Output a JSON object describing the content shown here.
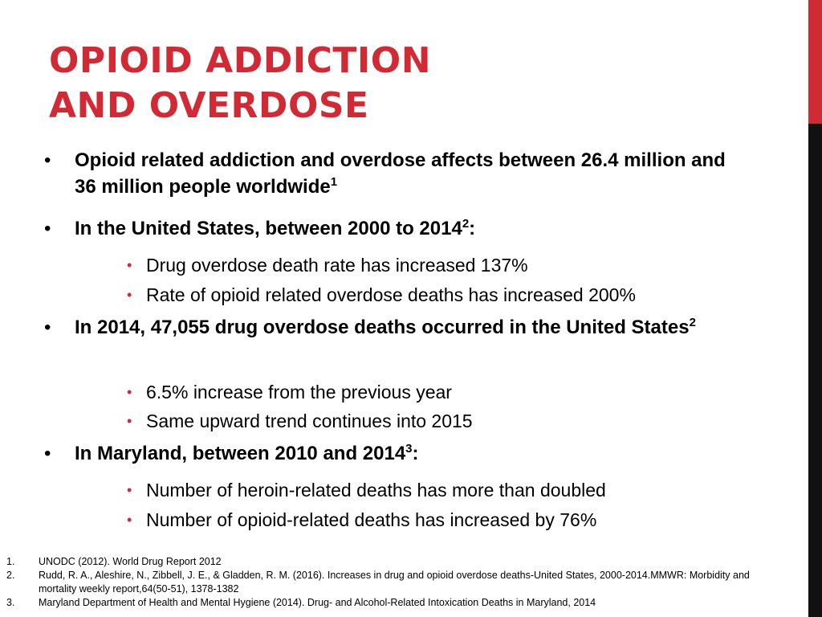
{
  "colors": {
    "accent": "#d12a35",
    "bullet_red": "#d12a35",
    "bar_dark": "#111111",
    "text": "#000000",
    "background": "#ffffff"
  },
  "slide": {
    "title_line1": "OPIOID ADDICTION",
    "title_line2": "AND OVERDOSE",
    "bullet_glyph": "•",
    "bullets": [
      {
        "text": "Opioid related addiction and overdose affects between 26.4 million and 36 million people worldwide",
        "ref": "1",
        "after": ""
      },
      {
        "text": "In the United States, between 2000 to 2014",
        "ref": "2",
        "after": ":",
        "subs": [
          "Drug overdose death rate has increased 137%",
          "Rate of opioid related overdose deaths has increased 200%"
        ]
      },
      {
        "text": "In 2014, 47,055 drug overdose deaths occurred in the United States",
        "ref": "2",
        "after": "",
        "subs": [
          "6.5% increase from the previous year",
          "Same upward trend continues into 2015"
        ]
      },
      {
        "text": "In Maryland, between 2010 and 2014",
        "ref": "3",
        "after": ":",
        "subs": [
          "Number of heroin-related deaths has more than doubled",
          "Number of opioid-related deaths has increased by 76%"
        ]
      }
    ],
    "references": [
      {
        "num": "1.",
        "text": "UNODC (2012). World Drug Report 2012"
      },
      {
        "num": "2.",
        "text": "Rudd, R. A., Aleshire, N., Zibbell, J. E., & Gladden, R. M. (2016). Increases in drug and opioid overdose deaths-United States, 2000-2014.MMWR: Morbidity and mortality weekly report,64(50-51), 1378-1382"
      },
      {
        "num": "3.",
        "text": "Maryland Department of Health and Mental Hygiene (2014). Drug- and Alcohol-Related Intoxication Deaths in Maryland, 2014"
      }
    ]
  }
}
